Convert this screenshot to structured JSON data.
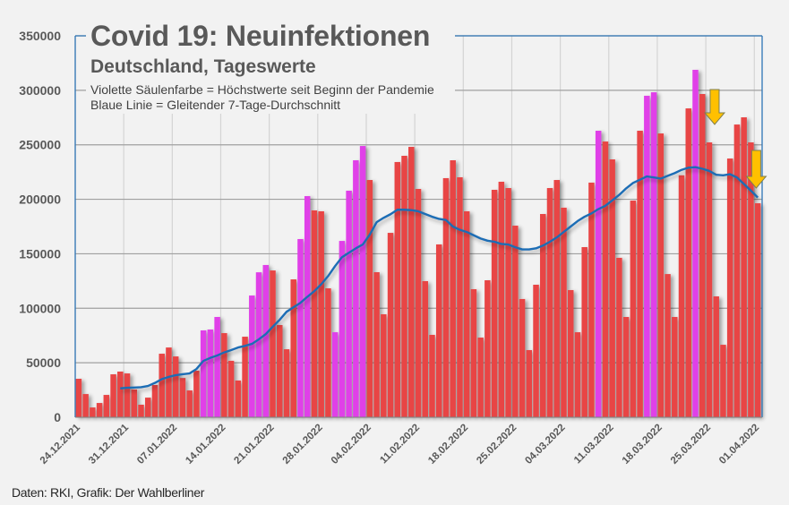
{
  "chart_data": {
    "type": "bar",
    "title": "Covid 19: Neuinfektionen",
    "subtitle": "Deutschland, Tageswerte",
    "legend": [
      "Violette Säulenfarbe = Höchstwerte seit Beginn der Pandemie",
      "Blaue Linie = Gleitender 7-Tage-Durchschnitt"
    ],
    "source": "Daten: RKI, Grafik: Der Wahlberliner",
    "xlabel": "",
    "ylabel": "",
    "ylim": [
      0,
      350000
    ],
    "y_ticks": [
      0,
      50000,
      100000,
      150000,
      200000,
      250000,
      300000,
      350000
    ],
    "y_tick_labels": [
      "0",
      "50000",
      "100000",
      "150000",
      "200000",
      "250000",
      "300000",
      "350000"
    ],
    "x_start_date": "24.12.2021",
    "x_end_date": "01.04.2022",
    "x_tick_every_days": 7,
    "x_tick_labels": [
      "24.12.2021",
      "31.12.2021",
      "07.01.2022",
      "14.01.2022",
      "21.01.2022",
      "28.01.2022",
      "04.02.2022",
      "11.02.2022",
      "18.02.2022",
      "25.02.2022",
      "04.03.2022",
      "11.03.2022",
      "18.03.2022",
      "25.03.2022",
      "01.04.2022"
    ],
    "grid": "both",
    "colors": {
      "normal_bar": "#e84545",
      "record_bar": "#e040e8",
      "average_line": "#1f6db5",
      "axis": "#2e75b6",
      "arrow_fill": "#ffc000",
      "arrow_stroke": "#7f7f50"
    },
    "series": [
      {
        "name": "Neuinfektionen (Tageswerte)",
        "type": "bar",
        "values": [
          35300,
          21300,
          9000,
          13100,
          20500,
          39400,
          41900,
          40200,
          25500,
          11500,
          18000,
          29600,
          58300,
          64000,
          55800,
          36000,
          24600,
          42700,
          79700,
          80500,
          92000,
          77200,
          51800,
          33700,
          73900,
          111700,
          133000,
          139700,
          134700,
          84600,
          62400,
          126500,
          163500,
          202900,
          189800,
          189000,
          118300,
          78000,
          161800,
          207900,
          235800,
          248900,
          217700,
          133100,
          94500,
          169200,
          234200,
          239900,
          248100,
          209500,
          124900,
          75600,
          158600,
          219400,
          235800,
          220200,
          189000,
          117500,
          73100,
          125700,
          208700,
          216100,
          210300,
          175800,
          108500,
          61600,
          121600,
          186500,
          210300,
          217700,
          192300,
          116700,
          78000,
          156100,
          215300,
          262900,
          253000,
          236600,
          146300,
          92000,
          198800,
          262900,
          295000,
          298200,
          260400,
          131400,
          92000,
          222000,
          283400,
          318800,
          296600,
          252200,
          110900,
          66500,
          237400,
          268600,
          275200,
          252200,
          196400
        ],
        "record_high_indices": [
          18,
          19,
          20,
          25,
          26,
          27,
          32,
          33,
          37,
          38,
          39,
          40,
          41,
          75,
          82,
          83,
          89
        ]
      },
      {
        "name": "Gleitender 7-Tage-Durchschnitt",
        "type": "line",
        "start_index": 6,
        "values": [
          26500,
          27100,
          27300,
          27600,
          28700,
          31500,
          35000,
          37000,
          38600,
          39500,
          40200,
          44300,
          51700,
          54500,
          56700,
          59500,
          61600,
          64000,
          65500,
          67300,
          71500,
          76300,
          83000,
          89400,
          96800,
          100900,
          105000,
          110500,
          115700,
          122000,
          129600,
          138700,
          146900,
          151000,
          155000,
          158500,
          167500,
          179000,
          183000,
          186300,
          190400,
          190400,
          190000,
          189000,
          186500,
          184000,
          182000,
          181000,
          175000,
          172000,
          170000,
          167000,
          164000,
          162000,
          161000,
          159000,
          158500,
          156000,
          154000,
          154000,
          155000,
          157500,
          161000,
          165000,
          170000,
          175000,
          180000,
          184000,
          187000,
          191000,
          194000,
          199000,
          204000,
          210000,
          215000,
          218000,
          221000,
          220000,
          219000,
          221500,
          224000,
          227000,
          229000,
          229500,
          228000,
          226000,
          222500,
          222000,
          223000,
          220000,
          214000,
          208000,
          201600
        ]
      }
    ],
    "annotations": [
      {
        "type": "arrow-down",
        "at_index": 91,
        "description": "yellow down arrow"
      },
      {
        "type": "arrow-down",
        "at_index": 97,
        "description": "yellow down arrow"
      }
    ]
  }
}
